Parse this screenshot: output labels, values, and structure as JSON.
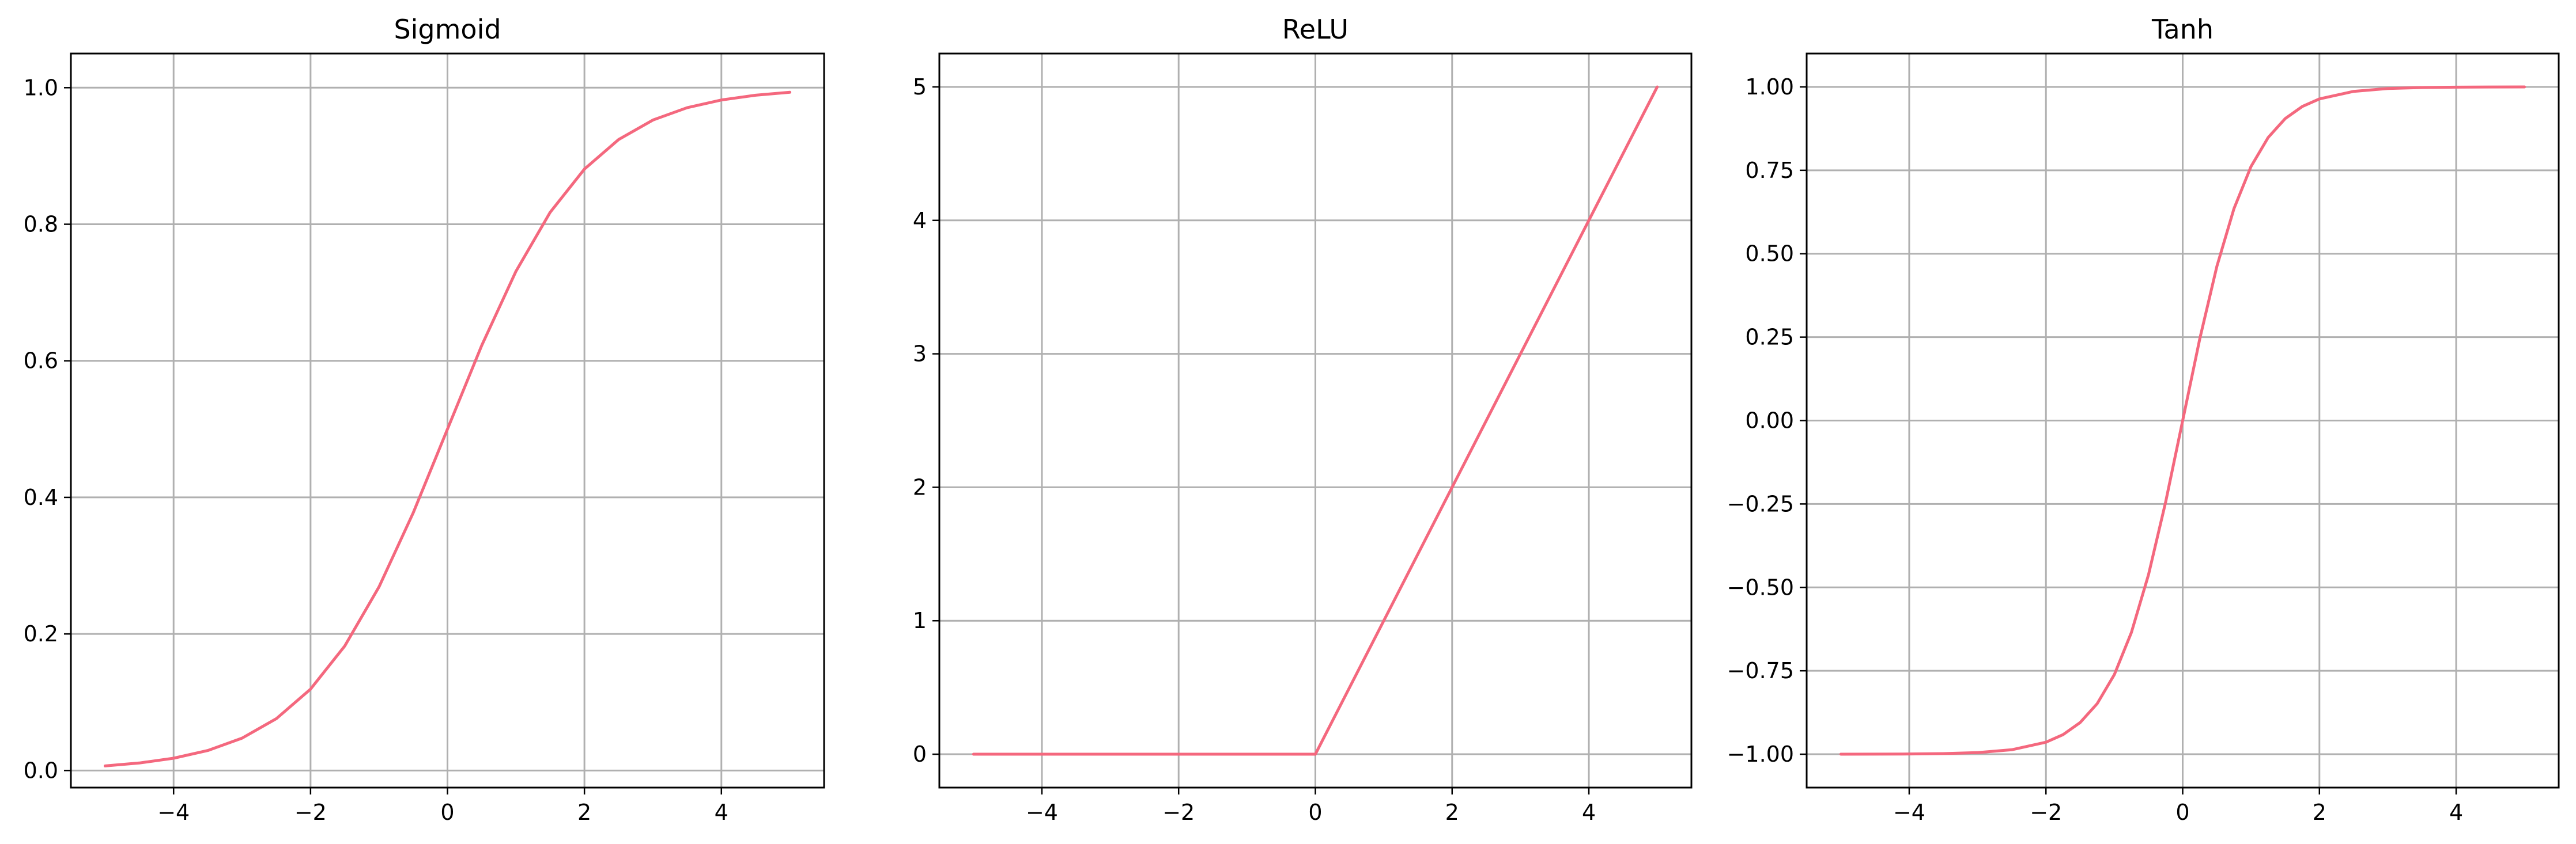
{
  "figure": {
    "line_color": "#f4687e",
    "grid_color": "#b0b0b0"
  },
  "chart_data": [
    {
      "type": "line",
      "title": "Sigmoid",
      "xlabel": "",
      "ylabel": "",
      "xlim": [
        -5.5,
        5.5
      ],
      "ylim": [
        -0.025,
        1.05
      ],
      "xticks": [
        -4,
        -2,
        0,
        2,
        4
      ],
      "xtick_labels": [
        "−4",
        "−2",
        "0",
        "2",
        "4"
      ],
      "yticks": [
        0.0,
        0.2,
        0.4,
        0.6,
        0.8,
        1.0
      ],
      "ytick_labels": [
        "0.0",
        "0.2",
        "0.4",
        "0.6",
        "0.8",
        "1.0"
      ],
      "grid": true,
      "series": [
        {
          "x": [
            -5,
            -4.5,
            -4,
            -3.5,
            -3,
            -2.5,
            -2,
            -1.5,
            -1,
            -0.5,
            0,
            0.5,
            1,
            1.5,
            2,
            2.5,
            3,
            3.5,
            4,
            4.5,
            5
          ],
          "y": [
            0.0067,
            0.011,
            0.018,
            0.0293,
            0.0474,
            0.0759,
            0.1192,
            0.1824,
            0.2689,
            0.3775,
            0.5,
            0.6225,
            0.7311,
            0.8176,
            0.8808,
            0.9241,
            0.9526,
            0.9707,
            0.982,
            0.989,
            0.9933
          ]
        }
      ]
    },
    {
      "type": "line",
      "title": "ReLU",
      "xlabel": "",
      "ylabel": "",
      "xlim": [
        -5.5,
        5.5
      ],
      "ylim": [
        -0.25,
        5.25
      ],
      "xticks": [
        -4,
        -2,
        0,
        2,
        4
      ],
      "xtick_labels": [
        "−4",
        "−2",
        "0",
        "2",
        "4"
      ],
      "yticks": [
        0,
        1,
        2,
        3,
        4,
        5
      ],
      "ytick_labels": [
        "0",
        "1",
        "2",
        "3",
        "4",
        "5"
      ],
      "grid": true,
      "series": [
        {
          "x": [
            -5,
            -4,
            -3,
            -2,
            -1,
            0,
            0.1,
            1,
            2,
            3,
            4,
            5
          ],
          "y": [
            0,
            0,
            0,
            0,
            0,
            0,
            0.1,
            1,
            2,
            3,
            4,
            5
          ]
        }
      ]
    },
    {
      "type": "line",
      "title": "Tanh",
      "xlabel": "",
      "ylabel": "",
      "xlim": [
        -5.5,
        5.5
      ],
      "ylim": [
        -1.1,
        1.1
      ],
      "xticks": [
        -4,
        -2,
        0,
        2,
        4
      ],
      "xtick_labels": [
        "−4",
        "−2",
        "0",
        "2",
        "4"
      ],
      "yticks": [
        -1.0,
        -0.75,
        -0.5,
        -0.25,
        0.0,
        0.25,
        0.5,
        0.75,
        1.0
      ],
      "ytick_labels": [
        "−1.00",
        "−0.75",
        "−0.50",
        "−0.25",
        "0.00",
        "0.25",
        "0.50",
        "0.75",
        "1.00"
      ],
      "grid": true,
      "series": [
        {
          "x": [
            -5,
            -4.5,
            -4,
            -3.5,
            -3,
            -2.5,
            -2,
            -1.75,
            -1.5,
            -1.25,
            -1,
            -0.75,
            -0.5,
            -0.25,
            0,
            0.25,
            0.5,
            0.75,
            1,
            1.25,
            1.5,
            1.75,
            2,
            2.5,
            3,
            3.5,
            4,
            4.5,
            5
          ],
          "y": [
            -0.9999,
            -0.9998,
            -0.9993,
            -0.9982,
            -0.9951,
            -0.9866,
            -0.964,
            -0.9414,
            -0.9051,
            -0.8483,
            -0.7616,
            -0.6351,
            -0.4621,
            -0.2449,
            0,
            0.2449,
            0.4621,
            0.6351,
            0.7616,
            0.8483,
            0.9051,
            0.9414,
            0.964,
            0.9866,
            0.9951,
            0.9982,
            0.9993,
            0.9998,
            0.9999
          ]
        }
      ]
    }
  ]
}
